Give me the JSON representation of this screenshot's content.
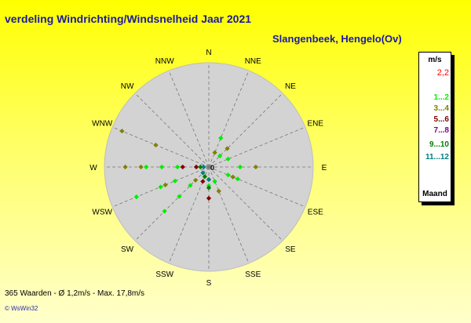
{
  "title": "verdeling Windrichting/Windsnelheid  Jaar 2021",
  "station": "Slangenbeek, Hengelo(Ov)",
  "footer": "365 Waarden   -   Ø 1,2m/s  -  Max. 17,8m/s",
  "credit": "© WsWin32",
  "colors": {
    "background_top": "#ffff00",
    "background_bottom": "#ffffcc",
    "circle": "#d3d3d3",
    "title": "#1a1aa0"
  },
  "legend": {
    "header": "m/s",
    "value": "2,2",
    "classes": [
      {
        "label": "1...2",
        "color": "#00ee00"
      },
      {
        "label": "3...4",
        "color": "#808000"
      },
      {
        "label": "5...6",
        "color": "#800000"
      },
      {
        "label": "7...8",
        "color": "#800080"
      },
      {
        "label": "9...10",
        "color": "#008000"
      },
      {
        "label": "11...12",
        "color": "#008080"
      }
    ],
    "footer": "Maand"
  },
  "chart_data": {
    "type": "scatter",
    "subtype": "wind-rose",
    "directions": [
      "N",
      "NNE",
      "NE",
      "ENE",
      "E",
      "ESE",
      "SE",
      "SSE",
      "S",
      "SSW",
      "SW",
      "WSW",
      "W",
      "WNW",
      "NW",
      "NNW"
    ],
    "center_label": "0",
    "series": [
      {
        "name": "1...2",
        "color": "#00ee00",
        "points": [
          {
            "dir": "W",
            "r": 0.6
          },
          {
            "dir": "W",
            "r": 0.45
          },
          {
            "dir": "W",
            "r": 0.3
          },
          {
            "dir": "WSW",
            "r": 0.75
          },
          {
            "dir": "WSW",
            "r": 0.5
          },
          {
            "dir": "WSW",
            "r": 0.35
          },
          {
            "dir": "SW",
            "r": 0.6
          },
          {
            "dir": "SW",
            "r": 0.4
          },
          {
            "dir": "SW",
            "r": 0.25
          },
          {
            "dir": "E",
            "r": 0.3
          },
          {
            "dir": "ESE",
            "r": 0.3
          },
          {
            "dir": "ESE",
            "r": 0.2
          },
          {
            "dir": "NNE",
            "r": 0.3
          },
          {
            "dir": "NE",
            "r": 0.15
          },
          {
            "dir": "SSE",
            "r": 0.15
          },
          {
            "dir": "S",
            "r": 0.18
          },
          {
            "dir": "ENE",
            "r": 0.2
          }
        ]
      },
      {
        "name": "3...4",
        "color": "#808000",
        "points": [
          {
            "dir": "WNW",
            "r": 0.9
          },
          {
            "dir": "WNW",
            "r": 0.55
          },
          {
            "dir": "W",
            "r": 0.8
          },
          {
            "dir": "W",
            "r": 0.65
          },
          {
            "dir": "WSW",
            "r": 0.45
          },
          {
            "dir": "E",
            "r": 0.45
          },
          {
            "dir": "ESE",
            "r": 0.25
          },
          {
            "dir": "SSE",
            "r": 0.25
          },
          {
            "dir": "NNE",
            "r": 0.15
          },
          {
            "dir": "NE",
            "r": 0.25
          },
          {
            "dir": "SW",
            "r": 0.18
          },
          {
            "dir": "S",
            "r": 0.12
          }
        ]
      },
      {
        "name": "5...6",
        "color": "#800000",
        "points": [
          {
            "dir": "W",
            "r": 0.25
          },
          {
            "dir": "S",
            "r": 0.3
          },
          {
            "dir": "SSW",
            "r": 0.15
          },
          {
            "dir": "W",
            "r": 0.12
          }
        ]
      },
      {
        "name": "9...10",
        "color": "#008000",
        "points": [
          {
            "dir": "S",
            "r": 0.2
          },
          {
            "dir": "SSW",
            "r": 0.1
          },
          {
            "dir": "W",
            "r": 0.08
          }
        ]
      },
      {
        "name": "11...12",
        "color": "#008080",
        "points": [
          {
            "dir": "S",
            "r": 0.12
          },
          {
            "dir": "SW",
            "r": 0.08
          },
          {
            "dir": "W",
            "r": 0.05
          }
        ]
      }
    ]
  }
}
